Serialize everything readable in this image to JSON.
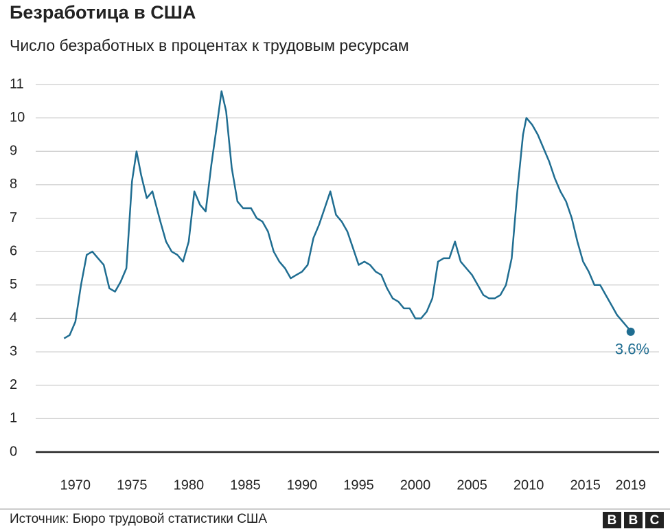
{
  "chart_data": {
    "type": "line",
    "title": "Безработица в США",
    "subtitle": "Число безработных в процентах к трудовым ресурсам",
    "source": "Источник: Бюро трудовой статистики США",
    "logo": [
      "B",
      "B",
      "C"
    ],
    "x": [
      1969.0,
      1969.5,
      1970.0,
      1970.5,
      1971.0,
      1971.5,
      1972.0,
      1972.5,
      1973.0,
      1973.5,
      1974.0,
      1974.5,
      1975.0,
      1975.4,
      1975.8,
      1976.3,
      1976.8,
      1977.5,
      1978.0,
      1978.5,
      1979.0,
      1979.5,
      1980.0,
      1980.5,
      1981.0,
      1981.5,
      1982.0,
      1982.5,
      1982.9,
      1983.3,
      1983.8,
      1984.3,
      1984.8,
      1985.5,
      1986.0,
      1986.5,
      1987.0,
      1987.5,
      1988.0,
      1988.5,
      1989.0,
      1989.5,
      1990.0,
      1990.5,
      1991.0,
      1991.5,
      1992.0,
      1992.5,
      1993.0,
      1993.5,
      1994.0,
      1994.5,
      1995.0,
      1995.5,
      1996.0,
      1996.5,
      1997.0,
      1997.5,
      1998.0,
      1998.5,
      1999.0,
      1999.5,
      2000.0,
      2000.5,
      2001.0,
      2001.5,
      2002.0,
      2002.5,
      2003.0,
      2003.5,
      2004.0,
      2004.5,
      2005.0,
      2005.5,
      2006.0,
      2006.5,
      2007.0,
      2007.5,
      2008.0,
      2008.5,
      2009.0,
      2009.5,
      2009.8,
      2010.3,
      2010.8,
      2011.3,
      2011.8,
      2012.3,
      2012.8,
      2013.3,
      2013.8,
      2014.3,
      2014.8,
      2015.3,
      2015.8,
      2016.3,
      2016.8,
      2017.3,
      2017.8,
      2018.3,
      2018.8,
      2019.0
    ],
    "values": [
      3.4,
      3.5,
      3.9,
      5.0,
      5.9,
      6.0,
      5.8,
      5.6,
      4.9,
      4.8,
      5.1,
      5.5,
      8.1,
      9.0,
      8.3,
      7.6,
      7.8,
      6.9,
      6.3,
      6.0,
      5.9,
      5.7,
      6.3,
      7.8,
      7.4,
      7.2,
      8.6,
      9.8,
      10.8,
      10.2,
      8.5,
      7.5,
      7.3,
      7.3,
      7.0,
      6.9,
      6.6,
      6.0,
      5.7,
      5.5,
      5.2,
      5.3,
      5.4,
      5.6,
      6.4,
      6.8,
      7.3,
      7.8,
      7.1,
      6.9,
      6.6,
      6.1,
      5.6,
      5.7,
      5.6,
      5.4,
      5.3,
      4.9,
      4.6,
      4.5,
      4.3,
      4.3,
      4.0,
      4.0,
      4.2,
      4.6,
      5.7,
      5.8,
      5.8,
      6.3,
      5.7,
      5.5,
      5.3,
      5.0,
      4.7,
      4.6,
      4.6,
      4.7,
      5.0,
      5.8,
      7.8,
      9.5,
      10.0,
      9.8,
      9.5,
      9.1,
      8.7,
      8.2,
      7.8,
      7.5,
      7.0,
      6.3,
      5.7,
      5.4,
      5.0,
      5.0,
      4.7,
      4.4,
      4.1,
      3.9,
      3.7,
      3.6
    ],
    "color": "#1f6d91",
    "annotations": [
      {
        "text": "3.6%",
        "x": 2019.0,
        "y": 3.6
      }
    ],
    "xlim": [
      1966.5,
      2021.5
    ],
    "xticks": [
      1970,
      1975,
      1980,
      1985,
      1990,
      1995,
      2000,
      2005,
      2010,
      2015,
      2019
    ],
    "ylim": [
      0,
      11
    ],
    "yticks": [
      0,
      1,
      2,
      3,
      4,
      5,
      6,
      7,
      8,
      9,
      10,
      11
    ],
    "grid": true
  }
}
